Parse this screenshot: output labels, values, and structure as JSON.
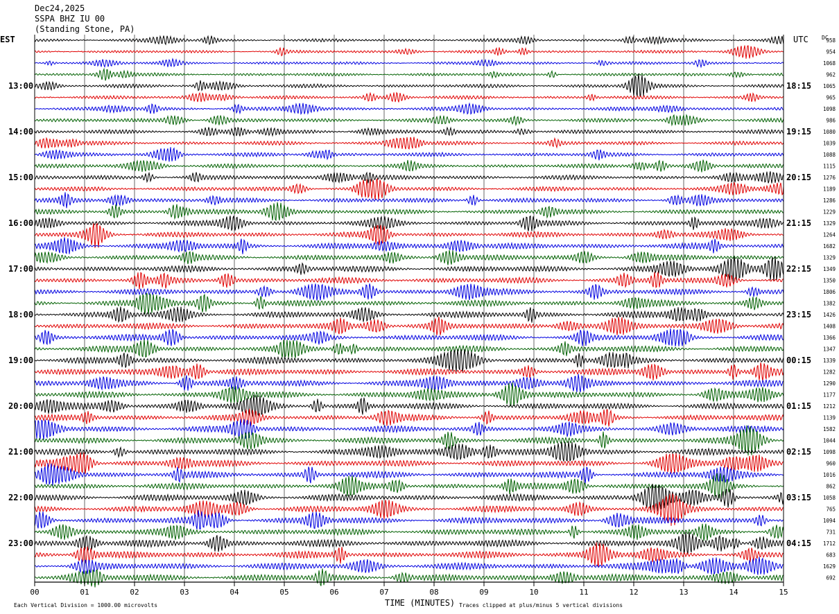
{
  "chart_data": {
    "type": "line",
    "header": {
      "date": "Dec24,2025",
      "station": "SSPA BHZ IU 00",
      "location": "(Standing Stone, PA)"
    },
    "left_axis_label": "EST",
    "right_axis_label": "UTC",
    "dc_label": "DC",
    "xlabel": "TIME (MINUTES)",
    "x_ticks": [
      "00",
      "01",
      "02",
      "03",
      "04",
      "05",
      "06",
      "07",
      "08",
      "09",
      "10",
      "11",
      "12",
      "13",
      "14",
      "15"
    ],
    "xlim": [
      0,
      15
    ],
    "footer_left": "Each Vertical Division = 1000.00 microvolts",
    "footer_right": "Traces clipped at plus/minus 5 vertical divisions",
    "trace_colors": [
      "#000000",
      "#e00000",
      "#0000e0",
      "#006000"
    ],
    "est_labels": [
      {
        "row": 4,
        "text": "13:00"
      },
      {
        "row": 8,
        "text": "14:00"
      },
      {
        "row": 12,
        "text": "15:00"
      },
      {
        "row": 16,
        "text": "16:00"
      },
      {
        "row": 20,
        "text": "17:00"
      },
      {
        "row": 24,
        "text": "18:00"
      },
      {
        "row": 28,
        "text": "19:00"
      },
      {
        "row": 32,
        "text": "20:00"
      },
      {
        "row": 36,
        "text": "21:00"
      },
      {
        "row": 40,
        "text": "22:00"
      },
      {
        "row": 44,
        "text": "23:00"
      }
    ],
    "utc_labels": [
      {
        "row": 4,
        "text": "18:15"
      },
      {
        "row": 8,
        "text": "19:15"
      },
      {
        "row": 12,
        "text": "20:15"
      },
      {
        "row": 16,
        "text": "21:15"
      },
      {
        "row": 20,
        "text": "22:15"
      },
      {
        "row": 24,
        "text": "23:15"
      },
      {
        "row": 28,
        "text": "00:15"
      },
      {
        "row": 32,
        "text": "01:15"
      },
      {
        "row": 36,
        "text": "02:15"
      },
      {
        "row": 40,
        "text": "03:15"
      },
      {
        "row": 44,
        "text": "04:15"
      }
    ],
    "dc_offsets": [
      "958",
      "954",
      "1068",
      "962",
      "1065",
      "965",
      "1098",
      "986",
      "1080",
      "1039",
      "1088",
      "1115",
      "1276",
      "1189",
      "1286",
      "1229",
      "1329",
      "1264",
      "1682",
      "1329",
      "1349",
      "1350",
      "1806",
      "1382",
      "1426",
      "1408",
      "1366",
      "1347",
      "1339",
      "1282",
      "1290",
      "1177",
      "1212",
      "1139",
      "1582",
      "1044",
      "1098",
      "960",
      "1016",
      "862",
      "1058",
      "765",
      "1094",
      "731",
      "1712",
      "683",
      "1629",
      "692"
    ],
    "row_count": 48,
    "row_amplitude": [
      2.2,
      2.0,
      2.0,
      2.2,
      2.6,
      2.4,
      2.6,
      2.8,
      2.8,
      2.8,
      2.8,
      3.0,
      3.2,
      3.2,
      3.4,
      3.4,
      3.8,
      3.8,
      4.2,
      4.0,
      4.4,
      4.2,
      4.2,
      4.4,
      4.6,
      4.4,
      4.4,
      4.6,
      4.8,
      4.6,
      4.6,
      4.4,
      4.6,
      4.4,
      4.6,
      4.4,
      4.6,
      4.6,
      4.6,
      4.4,
      4.8,
      4.6,
      4.6,
      4.6,
      5.0,
      4.8,
      4.8,
      4.8
    ]
  }
}
